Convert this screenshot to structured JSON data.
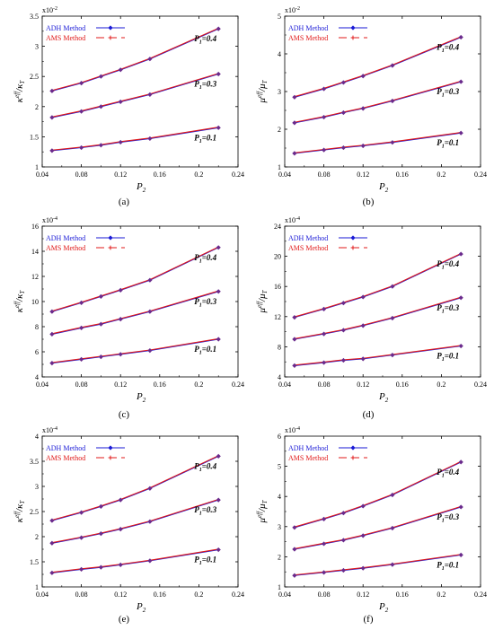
{
  "chart_data": [
    {
      "type": "line",
      "panel_label": "(a)",
      "exponent_label": "x10",
      "exponent_power": "-2",
      "ylabel": "κeff/κT",
      "ylabel_main": "κ",
      "ylabel_sup": "eff",
      "ylabel_tail": "/κ",
      "ylabel_sub": "T",
      "xlabel": "P2",
      "xlabel_main": "P",
      "xlabel_sub": "2",
      "xlim": [
        0.04,
        0.24
      ],
      "ylim": [
        1,
        3.5
      ],
      "x_ticks": [
        0.04,
        0.08,
        0.12,
        0.16,
        0.2,
        0.24
      ],
      "x_tick_labels": [
        "0.04",
        "0.08",
        "0.12",
        "0.16",
        "0.2",
        "0.24"
      ],
      "y_ticks": [
        1,
        1.5,
        2,
        2.5,
        3,
        3.5
      ],
      "y_tick_labels": [
        "1",
        "1.5",
        "2",
        "2.5",
        "3",
        "3.5"
      ],
      "x": [
        0.05,
        0.08,
        0.1,
        0.12,
        0.15,
        0.22
      ],
      "legend": [
        {
          "name": "ADH Method",
          "color": "#1a1ad6",
          "marker": "diamond"
        },
        {
          "name": "AMS Method",
          "color": "#e01818",
          "marker": "plus"
        }
      ],
      "curves": [
        {
          "label_main": "P",
          "label_sub": "1",
          "label_tail": "=0.4",
          "values": [
            2.26,
            2.39,
            2.5,
            2.61,
            2.79,
            3.29
          ]
        },
        {
          "label_main": "P",
          "label_sub": "1",
          "label_tail": "=0.3",
          "values": [
            1.82,
            1.92,
            2.0,
            2.08,
            2.2,
            2.54
          ]
        },
        {
          "label_main": "P",
          "label_sub": "1",
          "label_tail": "=0.1",
          "values": [
            1.27,
            1.32,
            1.36,
            1.41,
            1.47,
            1.65
          ]
        }
      ]
    },
    {
      "type": "line",
      "panel_label": "(b)",
      "exponent_label": "x10",
      "exponent_power": "-2",
      "ylabel": "μeff/μT",
      "ylabel_main": "μ",
      "ylabel_sup": "eff",
      "ylabel_tail": "/μ",
      "ylabel_sub": "T",
      "xlabel": "P2",
      "xlabel_main": "P",
      "xlabel_sub": "2",
      "xlim": [
        0.04,
        0.24
      ],
      "ylim": [
        1,
        5
      ],
      "x_ticks": [
        0.04,
        0.08,
        0.12,
        0.16,
        0.2,
        0.24
      ],
      "x_tick_labels": [
        "0.04",
        "0.08",
        "0.12",
        "0.16",
        "0.2",
        "0.24"
      ],
      "y_ticks": [
        1,
        2,
        3,
        4,
        5
      ],
      "y_tick_labels": [
        "1",
        "2",
        "3",
        "4",
        "5"
      ],
      "x": [
        0.05,
        0.08,
        0.1,
        0.12,
        0.15,
        0.22
      ],
      "legend": [
        {
          "name": "ADH Method",
          "color": "#1a1ad6",
          "marker": "diamond"
        },
        {
          "name": "AMS Method",
          "color": "#e01818",
          "marker": "plus"
        }
      ],
      "curves": [
        {
          "label_main": "P",
          "label_sub": "1",
          "label_tail": "=0.4",
          "values": [
            2.85,
            3.07,
            3.24,
            3.41,
            3.69,
            4.44
          ]
        },
        {
          "label_main": "P",
          "label_sub": "1",
          "label_tail": "=0.3",
          "values": [
            2.17,
            2.32,
            2.44,
            2.55,
            2.75,
            3.26
          ]
        },
        {
          "label_main": "P",
          "label_sub": "1",
          "label_tail": "=0.1",
          "values": [
            1.36,
            1.45,
            1.51,
            1.56,
            1.65,
            1.9
          ]
        }
      ]
    },
    {
      "type": "line",
      "panel_label": "(c)",
      "exponent_label": "x10",
      "exponent_power": "-4",
      "ylabel": "κeff/κT",
      "ylabel_main": "κ",
      "ylabel_sup": "eff",
      "ylabel_tail": "/κ",
      "ylabel_sub": "T",
      "xlabel": "P2",
      "xlabel_main": "P",
      "xlabel_sub": "2",
      "xlim": [
        0.04,
        0.24
      ],
      "ylim": [
        4,
        16
      ],
      "x_ticks": [
        0.04,
        0.08,
        0.12,
        0.16,
        0.2,
        0.24
      ],
      "x_tick_labels": [
        "0.04",
        "0.08",
        "0.12",
        "0.16",
        "0.2",
        "0.24"
      ],
      "y_ticks": [
        4,
        6,
        8,
        10,
        12,
        14,
        16
      ],
      "y_tick_labels": [
        "4",
        "6",
        "8",
        "10",
        "12",
        "14",
        "16"
      ],
      "x": [
        0.05,
        0.08,
        0.1,
        0.12,
        0.15,
        0.22
      ],
      "legend": [
        {
          "name": "ADH Method",
          "color": "#1a1ad6",
          "marker": "diamond"
        },
        {
          "name": "AMS Method",
          "color": "#e01818",
          "marker": "plus"
        }
      ],
      "curves": [
        {
          "label_main": "P",
          "label_sub": "1",
          "label_tail": "=0.4",
          "values": [
            9.2,
            9.9,
            10.4,
            10.9,
            11.7,
            14.3
          ]
        },
        {
          "label_main": "P",
          "label_sub": "1",
          "label_tail": "=0.3",
          "values": [
            7.4,
            7.9,
            8.2,
            8.6,
            9.2,
            10.8
          ]
        },
        {
          "label_main": "P",
          "label_sub": "1",
          "label_tail": "=0.1",
          "values": [
            5.1,
            5.4,
            5.6,
            5.8,
            6.1,
            7.0
          ]
        }
      ]
    },
    {
      "type": "line",
      "panel_label": "(d)",
      "exponent_label": "x10",
      "exponent_power": "-4",
      "ylabel": "μeff/μT",
      "ylabel_main": "μ",
      "ylabel_sup": "eff",
      "ylabel_tail": "/μ",
      "ylabel_sub": "T",
      "xlabel": "P2",
      "xlabel_main": "P",
      "xlabel_sub": "2",
      "xlim": [
        0.04,
        0.24
      ],
      "ylim": [
        4,
        24
      ],
      "x_ticks": [
        0.04,
        0.08,
        0.12,
        0.16,
        0.2,
        0.24
      ],
      "x_tick_labels": [
        "0.04",
        "0.08",
        "0.12",
        "0.16",
        "0.2",
        "0.24"
      ],
      "y_ticks": [
        4,
        8,
        12,
        16,
        20,
        24
      ],
      "y_tick_labels": [
        "4",
        "8",
        "12",
        "16",
        "20",
        "24"
      ],
      "x": [
        0.05,
        0.08,
        0.1,
        0.12,
        0.15,
        0.22
      ],
      "legend": [
        {
          "name": "ADH Method",
          "color": "#1a1ad6",
          "marker": "diamond"
        },
        {
          "name": "AMS Method",
          "color": "#e01818",
          "marker": "plus"
        }
      ],
      "curves": [
        {
          "label_main": "P",
          "label_sub": "1",
          "label_tail": "=0.4",
          "values": [
            11.9,
            13.0,
            13.8,
            14.6,
            16.0,
            20.3
          ]
        },
        {
          "label_main": "P",
          "label_sub": "1",
          "label_tail": "=0.3",
          "values": [
            9.0,
            9.7,
            10.2,
            10.8,
            11.8,
            14.5
          ]
        },
        {
          "label_main": "P",
          "label_sub": "1",
          "label_tail": "=0.1",
          "values": [
            5.5,
            5.9,
            6.2,
            6.4,
            6.9,
            8.1
          ]
        }
      ]
    },
    {
      "type": "line",
      "panel_label": "(e)",
      "exponent_label": "x10",
      "exponent_power": "-4",
      "ylabel": "κeff/κT",
      "ylabel_main": "κ",
      "ylabel_sup": "eff",
      "ylabel_tail": "/κ",
      "ylabel_sub": "T",
      "xlabel": "P2",
      "xlabel_main": "P",
      "xlabel_sub": "2",
      "xlim": [
        0.04,
        0.24
      ],
      "ylim": [
        1,
        4
      ],
      "x_ticks": [
        0.04,
        0.08,
        0.12,
        0.16,
        0.2,
        0.24
      ],
      "x_tick_labels": [
        "0.04",
        "0.08",
        "0.12",
        "0.16",
        "0.2",
        "0.24"
      ],
      "y_ticks": [
        1,
        1.5,
        2,
        2.5,
        3,
        3.5,
        4
      ],
      "y_tick_labels": [
        "1",
        "1.5",
        "2",
        "2.5",
        "3",
        "3.5",
        "4"
      ],
      "x": [
        0.05,
        0.08,
        0.1,
        0.12,
        0.15,
        0.22
      ],
      "legend": [
        {
          "name": "ADH Method",
          "color": "#1a1ad6",
          "marker": "diamond"
        },
        {
          "name": "AMS Method",
          "color": "#e01818",
          "marker": "plus"
        }
      ],
      "curves": [
        {
          "label_main": "P",
          "label_sub": "1",
          "label_tail": "=0.4",
          "values": [
            2.32,
            2.48,
            2.6,
            2.73,
            2.96,
            3.6
          ]
        },
        {
          "label_main": "P",
          "label_sub": "1",
          "label_tail": "=0.3",
          "values": [
            1.87,
            1.98,
            2.06,
            2.15,
            2.3,
            2.73
          ]
        },
        {
          "label_main": "P",
          "label_sub": "1",
          "label_tail": "=0.1",
          "values": [
            1.28,
            1.35,
            1.39,
            1.44,
            1.52,
            1.74
          ]
        }
      ]
    },
    {
      "type": "line",
      "panel_label": "(f)",
      "exponent_label": "x10",
      "exponent_power": "-4",
      "ylabel": "μeff/μT",
      "ylabel_main": "μ",
      "ylabel_sup": "eff",
      "ylabel_tail": "/μ",
      "ylabel_sub": "T",
      "xlabel": "P2",
      "xlabel_main": "P",
      "xlabel_sub": "2",
      "xlim": [
        0.04,
        0.24
      ],
      "ylim": [
        1,
        6
      ],
      "x_ticks": [
        0.04,
        0.08,
        0.12,
        0.16,
        0.2,
        0.24
      ],
      "x_tick_labels": [
        "0.04",
        "0.08",
        "0.12",
        "0.16",
        "0.2",
        "0.24"
      ],
      "y_ticks": [
        1,
        2,
        3,
        4,
        5,
        6
      ],
      "y_tick_labels": [
        "1",
        "2",
        "3",
        "4",
        "5",
        "6"
      ],
      "x": [
        0.05,
        0.08,
        0.1,
        0.12,
        0.15,
        0.22
      ],
      "legend": [
        {
          "name": "ADH Method",
          "color": "#1a1ad6",
          "marker": "diamond"
        },
        {
          "name": "AMS Method",
          "color": "#e01818",
          "marker": "plus"
        }
      ],
      "curves": [
        {
          "label_main": "P",
          "label_sub": "1",
          "label_tail": "=0.4",
          "values": [
            2.97,
            3.25,
            3.45,
            3.68,
            4.05,
            5.14
          ]
        },
        {
          "label_main": "P",
          "label_sub": "1",
          "label_tail": "=0.3",
          "values": [
            2.25,
            2.43,
            2.55,
            2.7,
            2.95,
            3.65
          ]
        },
        {
          "label_main": "P",
          "label_sub": "1",
          "label_tail": "=0.1",
          "values": [
            1.38,
            1.48,
            1.55,
            1.62,
            1.74,
            2.06
          ]
        }
      ]
    }
  ]
}
